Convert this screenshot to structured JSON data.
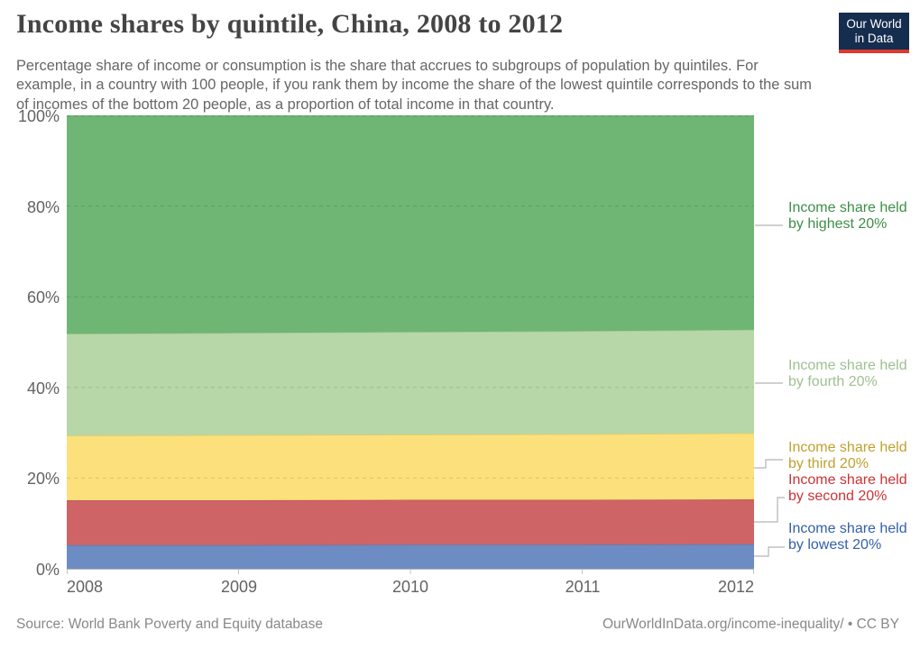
{
  "header": {
    "title": "Income shares by quintile, China, 2008 to 2012",
    "subtitle": "Percentage share of income or consumption is the share that accrues to subgroups of population by quintiles. For example, in a country with 100 people, if you rank them by income the share of the lowest quintile corresponds to the sum of incomes of the bottom 20 people, as a proportion of total income in that country.",
    "logo": {
      "line1": "Our World",
      "line2": "in Data",
      "bg": "#152d4f",
      "accent": "#dc3a2d"
    }
  },
  "chart_data": {
    "type": "area",
    "stacked": true,
    "title": "Income shares by quintile, China, 2008 to 2012",
    "x": [
      2008,
      2009,
      2010,
      2011,
      2012
    ],
    "xticks": [
      "2008",
      "2009",
      "2010",
      "2011",
      "2012"
    ],
    "yticks": [
      "0%",
      "20%",
      "40%",
      "60%",
      "80%",
      "100%"
    ],
    "ylim": [
      0,
      100
    ],
    "grid": "dashed-horizontal",
    "legend_position": "right",
    "series": [
      {
        "name": "Income share held by lowest 20%",
        "values": [
          5.2,
          5.2,
          5.3,
          5.3,
          5.4
        ],
        "fill": "#6d8cc3",
        "stroke": "#5a7cb5"
      },
      {
        "name": "Income share held by second 20%",
        "values": [
          9.9,
          9.9,
          9.9,
          9.9,
          9.9
        ],
        "fill": "#cf6466",
        "stroke": "#c25054"
      },
      {
        "name": "Income share held by third 20%",
        "values": [
          14.3,
          14.4,
          14.4,
          14.5,
          14.6
        ],
        "fill": "#fce07b",
        "stroke": "#e9c85e"
      },
      {
        "name": "Income share held by fourth 20%",
        "values": [
          22.4,
          22.5,
          22.6,
          22.7,
          22.8
        ],
        "fill": "#b7d7a8",
        "stroke": "#a6cb94"
      },
      {
        "name": "Income share held by highest 20%",
        "values": [
          48.2,
          48.0,
          47.8,
          47.6,
          47.3
        ],
        "fill": "#6fb573",
        "stroke": "#62aa68"
      }
    ],
    "annotation_line_color": "#b3b3b3"
  },
  "legend": [
    {
      "label": "Income share held by highest 20%",
      "color": "#3d8e47"
    },
    {
      "label": "Income share held by fourth 20%",
      "color": "#9fbf92"
    },
    {
      "label": "Income share held by third 20%",
      "color": "#bea12f"
    },
    {
      "label": "Income share held by second 20%",
      "color": "#cd3235"
    },
    {
      "label": "Income share held by lowest 20%",
      "color": "#3360a8"
    }
  ],
  "footer": {
    "source": "Source: World Bank Poverty and Equity database",
    "credit": "OurWorldInData.org/income-inequality/ • CC BY"
  }
}
